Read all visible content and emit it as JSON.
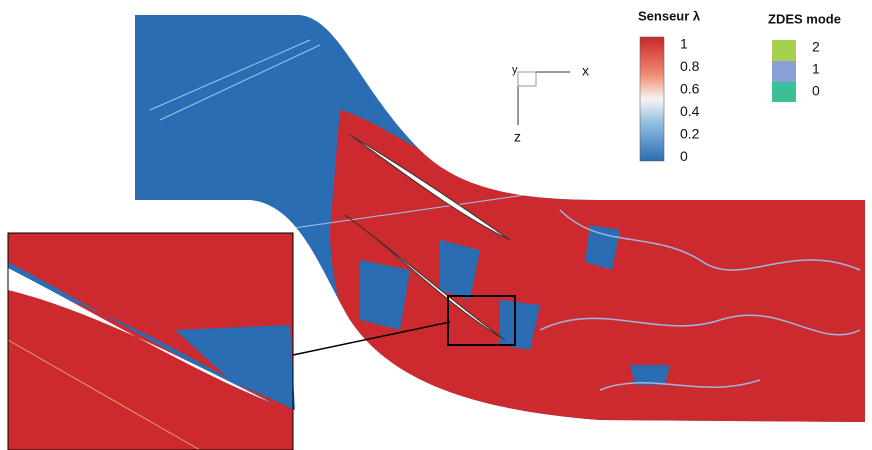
{
  "sensor_legend": {
    "title": "Senseur λ",
    "labels": [
      "1",
      "0.8",
      "0.6",
      "0.4",
      "0.2",
      "0"
    ]
  },
  "mode_legend": {
    "title": "ZDES mode",
    "labels": [
      "2",
      "1",
      "0"
    ]
  },
  "axes": {
    "x": "x",
    "y": "y",
    "z": "z"
  }
}
